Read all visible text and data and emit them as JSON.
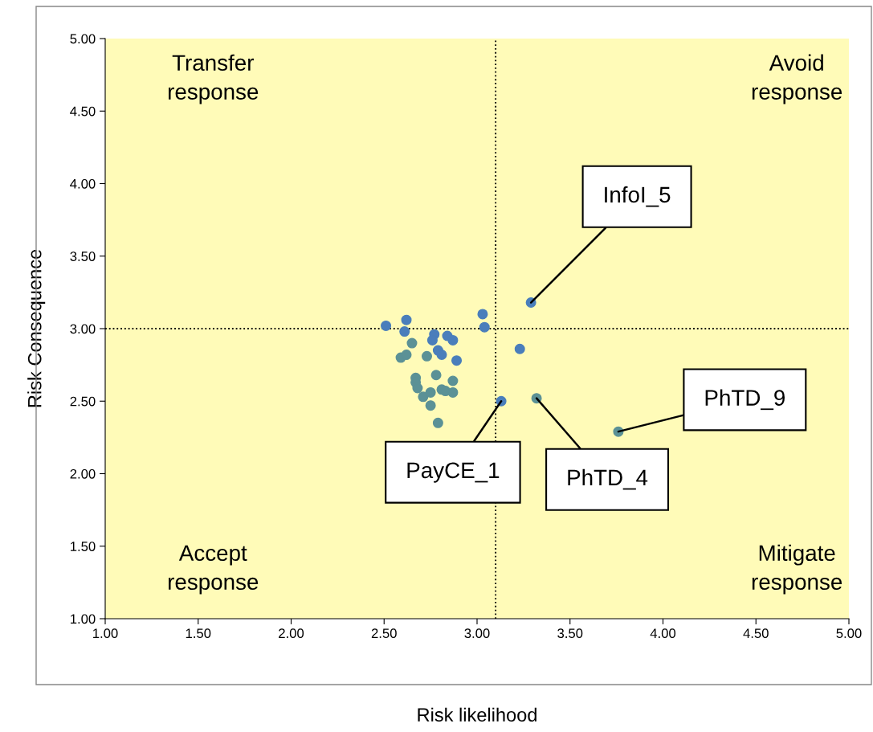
{
  "chart_data": {
    "type": "scatter",
    "xlabel": "Risk likelihood",
    "ylabel": "Risk Consequence",
    "xlim": [
      1.0,
      5.0
    ],
    "ylim": [
      1.0,
      5.0
    ],
    "xticks": [
      {
        "value": 1.0,
        "label": "1.00"
      },
      {
        "value": 1.5,
        "label": "1.50"
      },
      {
        "value": 2.0,
        "label": "2.00"
      },
      {
        "value": 2.5,
        "label": "2.50"
      },
      {
        "value": 3.0,
        "label": "3.00"
      },
      {
        "value": 3.5,
        "label": "3.50"
      },
      {
        "value": 4.0,
        "label": "4.00"
      },
      {
        "value": 4.5,
        "label": "4.50"
      },
      {
        "value": 5.0,
        "label": "5.00"
      }
    ],
    "yticks": [
      {
        "value": 1.0,
        "label": "1.00"
      },
      {
        "value": 1.5,
        "label": "1.50"
      },
      {
        "value": 2.0,
        "label": "2.00"
      },
      {
        "value": 2.5,
        "label": "2.50"
      },
      {
        "value": 3.0,
        "label": "3.00"
      },
      {
        "value": 3.5,
        "label": "3.50"
      },
      {
        "value": 4.0,
        "label": "4.00"
      },
      {
        "value": 4.5,
        "label": "4.50"
      },
      {
        "value": 5.0,
        "label": "5.00"
      }
    ],
    "grid": false,
    "legend": false,
    "marker": "circle",
    "series": [
      {
        "color": "#4a7ebb",
        "x": [
          2.51,
          2.62,
          2.61,
          2.77,
          2.76,
          2.84,
          2.87,
          2.79,
          2.81,
          2.89,
          3.03,
          3.04,
          3.29,
          3.23,
          3.13
        ],
        "values": [
          3.02,
          3.06,
          2.98,
          2.96,
          2.92,
          2.95,
          2.92,
          2.85,
          2.82,
          2.78,
          3.1,
          3.01,
          3.18,
          2.86,
          2.5
        ]
      },
      {
        "color": "#5b9196",
        "x": [
          2.65,
          2.59,
          2.62,
          2.73,
          2.67,
          2.67,
          2.68,
          2.71,
          2.75,
          2.78,
          2.87,
          2.81,
          2.83,
          2.87,
          2.75,
          2.79,
          3.32,
          3.76
        ],
        "values": [
          2.9,
          2.8,
          2.82,
          2.81,
          2.66,
          2.63,
          2.59,
          2.53,
          2.56,
          2.68,
          2.64,
          2.58,
          2.57,
          2.56,
          2.47,
          2.35,
          2.52,
          2.29
        ]
      }
    ],
    "ref_lines": [
      {
        "axis": "x",
        "value": 3.1,
        "color": "#000000",
        "line_style": "dotted"
      },
      {
        "axis": "y",
        "value": 3.0,
        "color": "#000000",
        "line_style": "dotted"
      }
    ],
    "annotations": [
      "Transfer\nresponse",
      "Avoid\nresponse",
      "Accept\nresponse",
      "Mitigate\nresponse",
      {
        "text": "InfoI_5",
        "x": 3.29,
        "y": 3.18
      },
      {
        "text": "PayCE_1",
        "x": 3.13,
        "y": 2.5
      },
      {
        "text": "PhTD_4",
        "x": 3.32,
        "y": 2.52
      },
      {
        "text": "PhTD_9",
        "x": 3.76,
        "y": 2.29
      }
    ]
  }
}
